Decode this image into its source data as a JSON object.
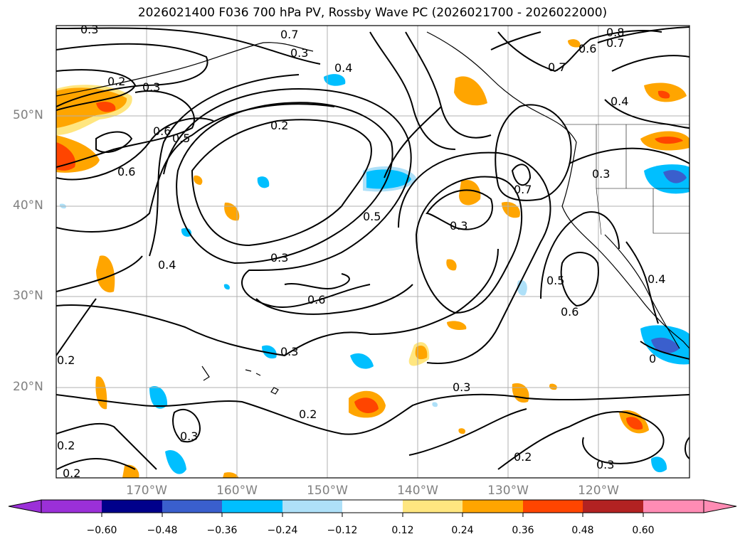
{
  "title": "2026021400 F036 700 hPa PV, Rossby Wave PC (2026021700 - 2026022000)",
  "lat_labels": [
    "50°N",
    "40°N",
    "30°N",
    "20°N"
  ],
  "lon_labels": [
    "170°W",
    "160°W",
    "150°W",
    "140°W",
    "130°W",
    "120°W"
  ],
  "contour_labels": [
    "0.3",
    "0.2",
    "0.3",
    "0.7",
    "0.3",
    "0.4",
    "0.8",
    "0.7",
    "0.6",
    "0.7",
    "0.4",
    "0.6",
    "0.5",
    "0.2",
    "0.6",
    "0.3",
    "0.7",
    "0.5",
    "0.3",
    "0.4",
    "0.3",
    "0.6",
    "0.5",
    "0.6",
    "0.3",
    "0.3",
    "0.2",
    "0.3",
    "0.2",
    "0.2",
    "0.2",
    "0.2",
    "0.3",
    "0.4",
    "0"
  ],
  "colorbar": {
    "ticks": [
      "−0.60",
      "−0.48",
      "−0.36",
      "−0.24",
      "−0.12",
      "0.12",
      "0.24",
      "0.36",
      "0.48",
      "0.60"
    ],
    "colors": [
      "#9b30d8",
      "#00008b",
      "#3a5fcd",
      "#00bfff",
      "#aee0f8",
      "#ffffff",
      "#ffe680",
      "#ffa500",
      "#ff4500",
      "#b22222",
      "#ff8cb4"
    ]
  },
  "fill_colors": {
    "orange": "#ffa500",
    "light_yellow": "#ffe680",
    "red_orange": "#ff4500",
    "deep_sky": "#00bfff",
    "light_blue": "#aee0f8",
    "royal_blue": "#3a5fcd"
  }
}
